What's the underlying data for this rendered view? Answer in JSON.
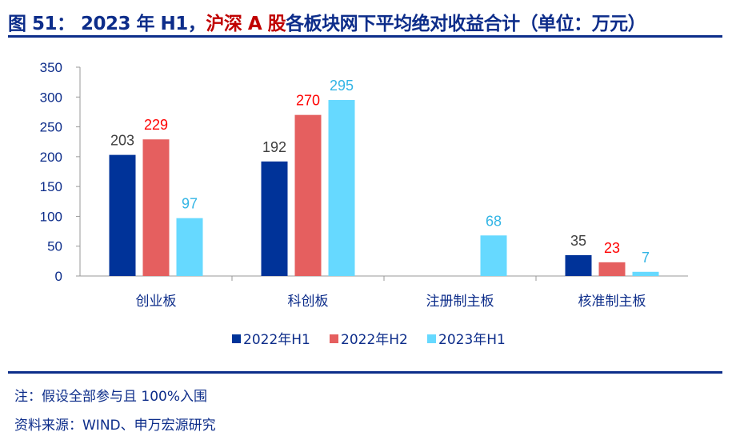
{
  "header": {
    "title_prefix": "图 51：  2023 年 H1，",
    "title_red": "沪深 A 股",
    "title_suffix": "各板块网下平均绝对收益合计（单位：万元）"
  },
  "chart_data": {
    "type": "bar",
    "title": "2023 年 H1，沪深 A 股各板块网下平均绝对收益合计（单位：万元）",
    "categories": [
      "创业板",
      "科创板",
      "注册制主板",
      "核准制主板"
    ],
    "series": [
      {
        "name": "2022年H1",
        "values": [
          203,
          192,
          null,
          35
        ],
        "color": "#003399",
        "label_color": "#404040"
      },
      {
        "name": "2022年H2",
        "values": [
          229,
          270,
          null,
          23
        ],
        "color": "#e55f5f",
        "label_color": "#ff0000"
      },
      {
        "name": "2023年H1",
        "values": [
          97,
          295,
          68,
          7
        ],
        "color": "#66d9ff",
        "label_color": "#33b5e5"
      }
    ],
    "ylim": [
      0,
      350
    ],
    "yticks": [
      0,
      50,
      100,
      150,
      200,
      250,
      300,
      350
    ],
    "grid": false,
    "legend": "bottom",
    "xlabel": "",
    "ylabel": ""
  },
  "footer": {
    "note": "注：假设全部参与且 100%入围",
    "source": "资料来源：WIND、申万宏源研究"
  },
  "colors": {
    "brand": "#0d2d8a",
    "highlight": "#c00000"
  }
}
